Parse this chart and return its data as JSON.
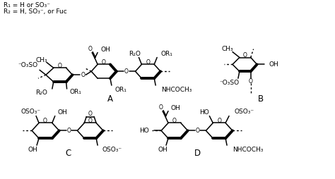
{
  "background_color": "#ffffff",
  "line_color": "#000000",
  "legend_text_1": "R₁ = H or SO₃⁻",
  "legend_text_2": "R₂ = H, SO₃⁻, or Fuc",
  "label_A": "A",
  "label_B": "B",
  "label_C": "C",
  "label_D": "D",
  "font_size": 6.5,
  "fig_width": 4.74,
  "fig_height": 2.54,
  "dpi": 100
}
